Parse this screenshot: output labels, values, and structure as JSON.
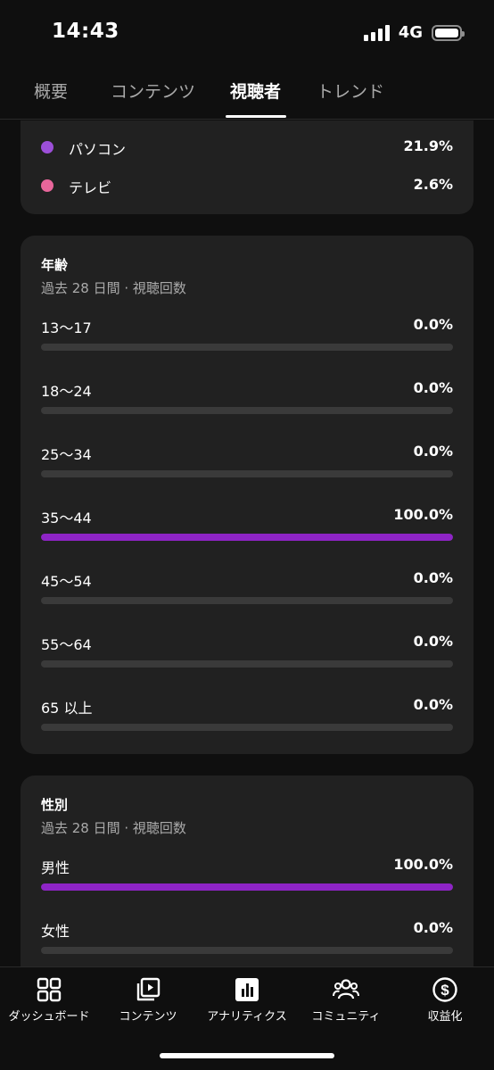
{
  "status_bar": {
    "time": "14:43",
    "network": "4G"
  },
  "tabs": [
    {
      "label": "概要",
      "active": false
    },
    {
      "label": "コンテンツ",
      "active": false
    },
    {
      "label": "視聴者",
      "active": true
    },
    {
      "label": "トレンド",
      "active": false
    }
  ],
  "devices_card": {
    "rows": [
      {
        "label": "パソコン",
        "value": "21.9%",
        "color": "#9c4fd8"
      },
      {
        "label": "テレビ",
        "value": "2.6%",
        "color": "#e8669b"
      }
    ]
  },
  "age_card": {
    "title": "年齢",
    "subtitle": "過去 28 日間 · 視聴回数",
    "rows": [
      {
        "label": "13～17",
        "value": "0.0%",
        "fraction": 0.0
      },
      {
        "label": "18～24",
        "value": "0.0%",
        "fraction": 0.0
      },
      {
        "label": "25～34",
        "value": "0.0%",
        "fraction": 0.0
      },
      {
        "label": "35～44",
        "value": "100.0%",
        "fraction": 1.0
      },
      {
        "label": "45～54",
        "value": "0.0%",
        "fraction": 0.0
      },
      {
        "label": "55～64",
        "value": "0.0%",
        "fraction": 0.0
      },
      {
        "label": "65 以上",
        "value": "0.0%",
        "fraction": 0.0
      }
    ]
  },
  "gender_card": {
    "title": "性別",
    "subtitle": "過去 28 日間 · 視聴回数",
    "rows": [
      {
        "label": "男性",
        "value": "100.0%",
        "fraction": 1.0
      },
      {
        "label": "女性",
        "value": "0.0%",
        "fraction": 0.0
      }
    ]
  },
  "bottom_nav": [
    {
      "label": "ダッシュボード",
      "icon": "dashboard-icon",
      "active": false
    },
    {
      "label": "コンテンツ",
      "icon": "content-icon",
      "active": false
    },
    {
      "label": "アナリティクス",
      "icon": "analytics-icon",
      "active": true
    },
    {
      "label": "コミュニティ",
      "icon": "community-icon",
      "active": false
    },
    {
      "label": "収益化",
      "icon": "monetization-icon",
      "active": false
    }
  ],
  "colors": {
    "accent": "#8e24c6",
    "card": "#212121",
    "background": "#0f0f0f"
  }
}
